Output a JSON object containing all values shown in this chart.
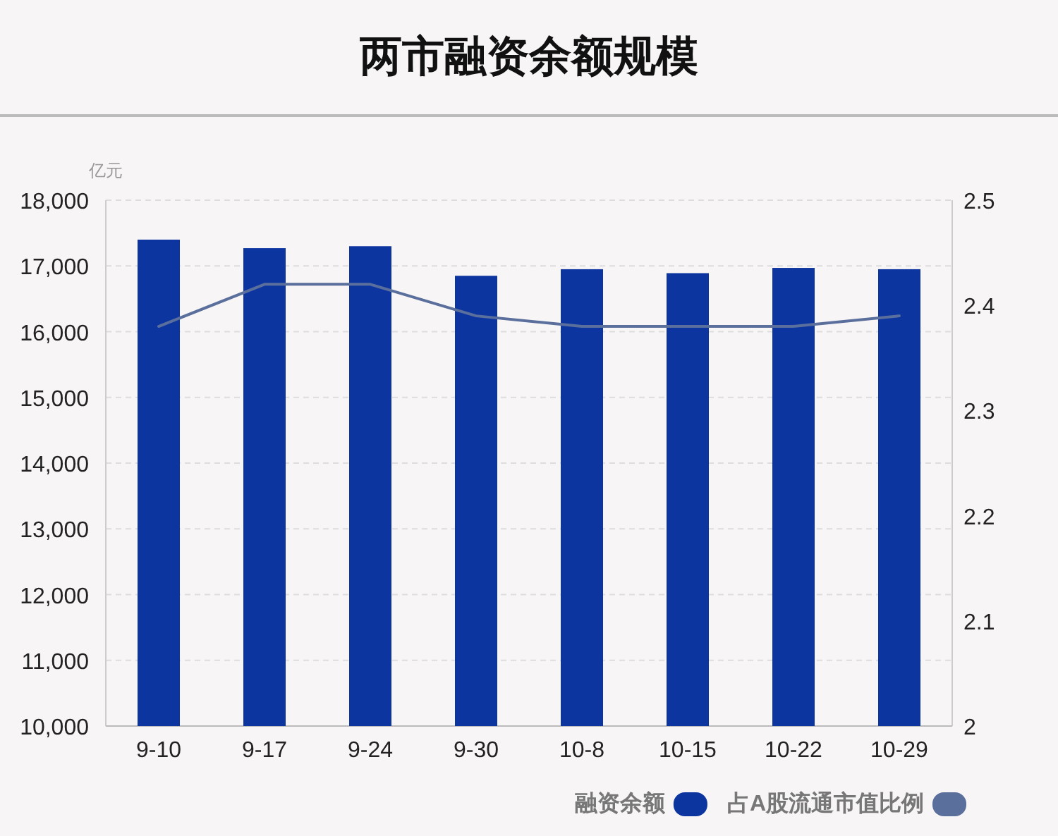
{
  "chart_data": {
    "type": "bar",
    "title": "两市融资余额规模",
    "ylabel": "亿元",
    "categories": [
      "9-10",
      "9-17",
      "9-24",
      "9-30",
      "10-8",
      "10-15",
      "10-22",
      "10-29"
    ],
    "series": [
      {
        "name": "融资余额",
        "color": "#0d35a0",
        "values": [
          17400,
          17270,
          17300,
          16850,
          16950,
          16890,
          16970,
          16950
        ]
      },
      {
        "name": "占A股流通市值比例",
        "type": "line",
        "axis": "y2",
        "color": "#5a6f9c",
        "values": [
          2.38,
          2.42,
          2.42,
          2.39,
          2.38,
          2.38,
          2.38,
          2.39
        ]
      }
    ],
    "ylim": [
      10000,
      18000
    ],
    "yticks": [
      {
        "value": 10000,
        "label": "10,000"
      },
      {
        "value": 11000,
        "label": "11,000"
      },
      {
        "value": 12000,
        "label": "12,000"
      },
      {
        "value": 13000,
        "label": "13,000"
      },
      {
        "value": 14000,
        "label": "14,000"
      },
      {
        "value": 15000,
        "label": "15,000"
      },
      {
        "value": 16000,
        "label": "16,000"
      },
      {
        "value": 17000,
        "label": "17,000"
      },
      {
        "value": 18000,
        "label": "18,000"
      }
    ],
    "y2lim": [
      2,
      2.5
    ],
    "y2ticks": [
      2,
      2.1,
      2.2,
      2.3,
      2.4,
      2.5
    ],
    "grid": "y",
    "legend": "bottom right"
  }
}
